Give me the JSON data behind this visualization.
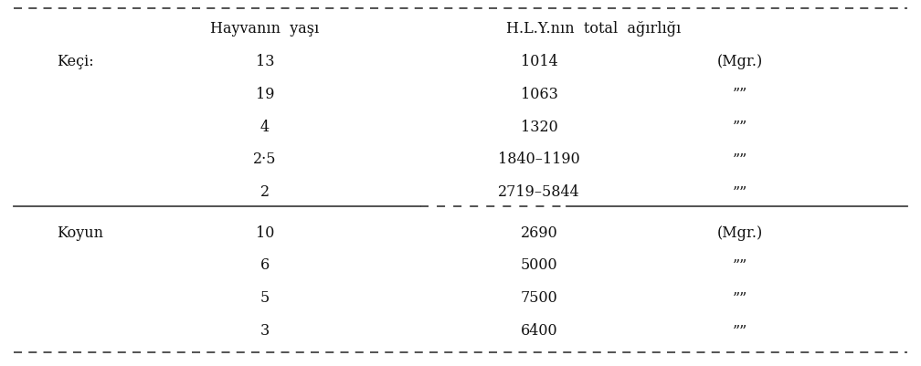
{
  "bg_color": "#ffffff",
  "header_col1": "Hayvanın  yaşı",
  "header_col2": "H.L.Y.nın  total  ağırlığı",
  "sections": [
    {
      "label": "Keçi:",
      "rows": [
        {
          "age": "13",
          "value": "1014",
          "unit": "(Mgr.)"
        },
        {
          "age": "19",
          "value": "1063",
          "unit": "\"\""
        },
        {
          "age": "4",
          "value": "1320",
          "unit": "\"\""
        },
        {
          "age": "2·5",
          "value": "1840–1190",
          "unit": "\"\""
        },
        {
          "age": "2",
          "value": "2719–5844",
          "unit": "\"\""
        }
      ]
    },
    {
      "label": "Koyun",
      "rows": [
        {
          "age": "10",
          "value": "2690",
          "unit": "(Mgr.)"
        },
        {
          "age": "6",
          "value": "5000",
          "unit": "\"\""
        },
        {
          "age": "5",
          "value": "7500",
          "unit": "\"\""
        },
        {
          "age": "3",
          "value": "6400",
          "unit": "\"\""
        }
      ]
    }
  ],
  "text_color": "#111111",
  "line_color": "#444444",
  "font_size_header": 11.5,
  "font_size_body": 11.5,
  "font_size_label": 11.5,
  "font_size_unit": 11.5
}
